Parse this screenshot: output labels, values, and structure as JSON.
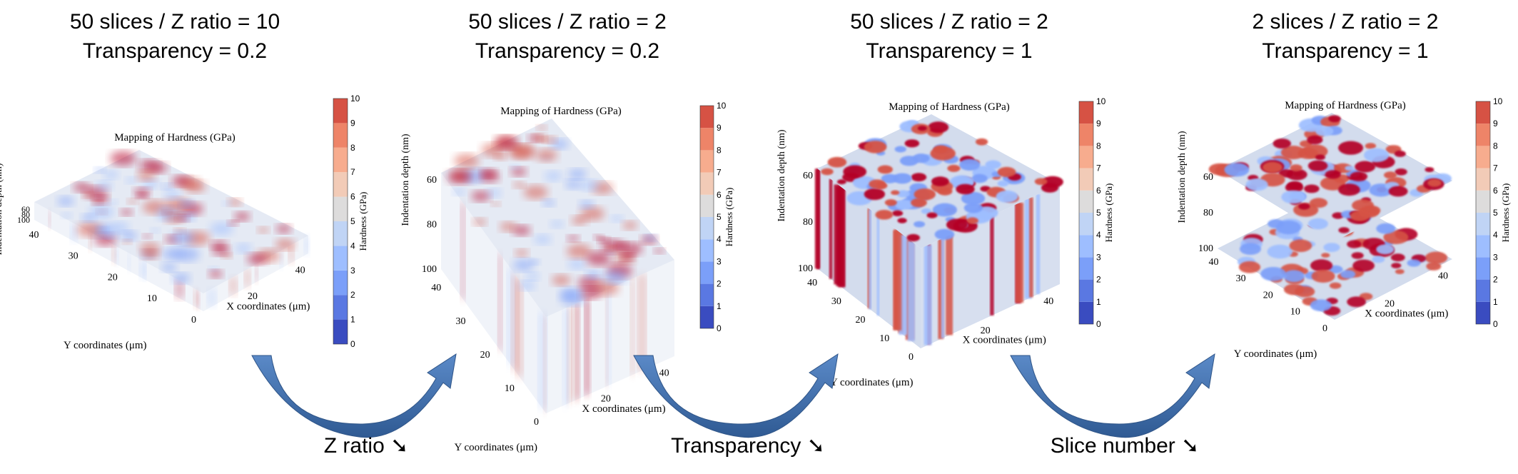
{
  "chart_data": [
    {
      "type": "heatmap",
      "panel": 1,
      "title": "50 slices / Z ratio  = 10",
      "subtitle": "Transparency = 0.2",
      "plot_title": "Mapping of Hardness (GPa)",
      "xlabel": "X coordinates (μm)",
      "ylabel": "Y coordinates (μm)",
      "zlabel": "Indentation depth (nm)",
      "colorbar_label": "Hardness (GPa)",
      "colorbar_ticks": [
        "0",
        "1",
        "2",
        "3",
        "4",
        "5",
        "6",
        "7",
        "8",
        "9",
        "10"
      ],
      "x_ticks": [
        "20",
        "40"
      ],
      "y_ticks": [
        "0",
        "10",
        "20",
        "30",
        "40"
      ],
      "z_ticks": [
        "60",
        "80",
        "100"
      ],
      "clim": [
        0,
        10
      ],
      "slices": 50,
      "z_ratio": 10,
      "transparency": 0.2
    },
    {
      "type": "heatmap",
      "panel": 2,
      "title": "50 slices / Z ratio  = 2",
      "subtitle": "Transparency = 0.2",
      "plot_title": "Mapping of Hardness (GPa)",
      "xlabel": "X coordinates (μm)",
      "ylabel": "Y coordinates (μm)",
      "zlabel": "Indentation depth (nm)",
      "colorbar_label": "Hardness (GPa)",
      "colorbar_ticks": [
        "0",
        "1",
        "2",
        "3",
        "4",
        "5",
        "6",
        "7",
        "8",
        "9",
        "10"
      ],
      "x_ticks": [
        "20",
        "40"
      ],
      "y_ticks": [
        "0",
        "10",
        "20",
        "30",
        "40"
      ],
      "z_ticks": [
        "60",
        "80",
        "100"
      ],
      "clim": [
        0,
        10
      ],
      "slices": 50,
      "z_ratio": 2,
      "transparency": 0.2
    },
    {
      "type": "heatmap",
      "panel": 3,
      "title": "50 slices / Z ratio  = 2",
      "subtitle": "Transparency = 1",
      "plot_title": "Mapping of Hardness (GPa)",
      "xlabel": "X coordinates (μm)",
      "ylabel": "Y coordinates (μm)",
      "zlabel": "Indentation depth (nm)",
      "colorbar_label": "Hardness (GPa)",
      "colorbar_ticks": [
        "0",
        "1",
        "2",
        "3",
        "4",
        "5",
        "6",
        "7",
        "8",
        "9",
        "10"
      ],
      "x_ticks": [
        "20",
        "40"
      ],
      "y_ticks": [
        "0",
        "10",
        "20",
        "30",
        "40"
      ],
      "z_ticks": [
        "60",
        "80",
        "100"
      ],
      "clim": [
        0,
        10
      ],
      "slices": 50,
      "z_ratio": 2,
      "transparency": 1
    },
    {
      "type": "heatmap",
      "panel": 4,
      "title": "2 slices / Z ratio  = 2",
      "subtitle": "Transparency = 1",
      "plot_title": "Mapping of Hardness (GPa)",
      "xlabel": "X coordinates (μm)",
      "ylabel": "Y coordinates (μm)",
      "zlabel": "Indentation depth (nm)",
      "colorbar_label": "Hardness (GPa)",
      "colorbar_ticks": [
        "0",
        "1",
        "2",
        "3",
        "4",
        "5",
        "6",
        "7",
        "8",
        "9",
        "10"
      ],
      "x_ticks": [
        "20",
        "40"
      ],
      "y_ticks": [
        "0",
        "10",
        "20",
        "30",
        "40"
      ],
      "z_ticks": [
        "60",
        "80",
        "100"
      ],
      "clim": [
        0,
        10
      ],
      "slices": 2,
      "z_ratio": 2,
      "transparency": 1
    }
  ],
  "transitions": [
    {
      "label": "Z ratio",
      "arrow_symbol": "➘"
    },
    {
      "label": "Transparency",
      "arrow_symbol": "➘"
    },
    {
      "label": "Slice number",
      "arrow_symbol": "➘"
    }
  ],
  "colormap": [
    "#3a4cc0",
    "#5a78e2",
    "#7b9ff9",
    "#9ebeff",
    "#c0d4f5",
    "#dddcdc",
    "#f2cbb7",
    "#f7ac8e",
    "#ee8468",
    "#d65244",
    "#b40426"
  ],
  "colors": {
    "arrow_fill": "#4a78b5",
    "arrow_stroke": "#2f5588",
    "surface_base": "#d3dced",
    "hot": "#c0182c",
    "cold": "#5a7fd6"
  }
}
